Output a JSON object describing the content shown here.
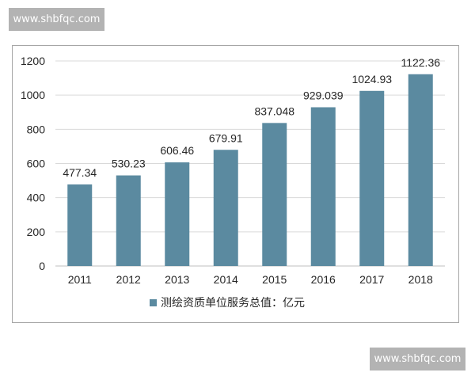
{
  "watermarks": {
    "top": "www.shbfqc.com",
    "bottom": "www.shbfqc.com"
  },
  "chart_data": {
    "type": "bar",
    "categories": [
      "2011",
      "2012",
      "2013",
      "2014",
      "2015",
      "2016",
      "2017",
      "2018"
    ],
    "series": [
      {
        "name": "测绘资质单位服务总值：亿元",
        "values": [
          477.34,
          530.23,
          606.46,
          679.91,
          837.048,
          929.039,
          1024.93,
          1122.36
        ],
        "labels": [
          "477.34",
          "530.23",
          "606.46",
          "679.91",
          "837.048",
          "929.039",
          "1024.93",
          "1122.36"
        ]
      }
    ],
    "yticks": [
      "0",
      "200",
      "400",
      "600",
      "800",
      "1000",
      "1200"
    ],
    "ylim": [
      0,
      1200
    ],
    "grid": true,
    "legend_position": "bottom",
    "colors": {
      "bar": "#5b8aa0",
      "grid": "#d9d9d9",
      "axis": "#bfbfbf",
      "text": "#262626"
    }
  }
}
